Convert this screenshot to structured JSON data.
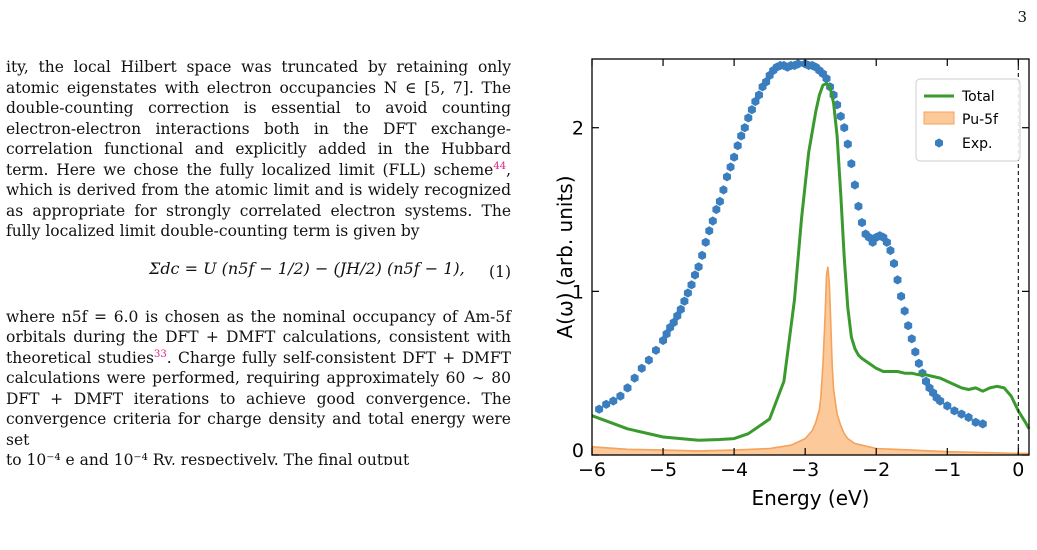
{
  "page": {
    "number": "3"
  },
  "text": {
    "para1": "ity, the local Hilbert space was truncated by retaining only atomic eigenstates with electron occupancies N ∈ [5, 7]. The double-counting correction is essential to avoid counting electron-electron interactions both in the DFT exchange-correlation functional and explicitly added in the Hubbard term. Here we chose the fully localized limit (FLL) scheme",
    "ref44": "44",
    "para1_cont": ", which is derived from the atomic limit and is widely recognized as appropriate for strongly correlated electron systems. The fully localized limit double-counting term is given by",
    "equation": "Σdc = U (n5f − 1/2) − (JH/2) (n5f − 1),",
    "equation_number": "(1)",
    "para2": "where n5f = 6.0 is chosen as the nominal occupancy of Am-5f orbitals during the DFT + DMFT calculations, consistent with theoretical studies",
    "ref33": "33",
    "para2_cont": ". Charge fully self-consistent DFT + DMFT calculations were performed, requiring approximately 60 ∼ 80 DFT + DMFT iterations to achieve good convergence. The convergence criteria for charge density and total energy were set",
    "last_line": "to 10⁻⁴ e and 10⁻⁴ Ry, respectively. The final output"
  },
  "chart_data": {
    "type": "line",
    "xlabel": "Energy (eV)",
    "ylabel": "A(ω) (arb. units)",
    "xlim": [
      -6,
      0.15
    ],
    "ylim": [
      0,
      2.42
    ],
    "xticks": [
      -6,
      -5,
      -4,
      -3,
      -2,
      -1,
      0
    ],
    "xtick_labels": [
      "−6",
      "−5",
      "−4",
      "−3",
      "−2",
      "−1",
      "0"
    ],
    "yticks": [
      0,
      1,
      2
    ],
    "ytick_labels": [
      "0",
      "1",
      "2"
    ],
    "fermi_level": 0,
    "legend_position": "top-right",
    "series": [
      {
        "name": "Total",
        "kind": "line",
        "color": "#3a9a2e",
        "x": [
          -6,
          -5.5,
          -5,
          -4.5,
          -4.2,
          -4.0,
          -3.8,
          -3.5,
          -3.3,
          -3.15,
          -3.05,
          -2.95,
          -2.85,
          -2.8,
          -2.75,
          -2.7,
          -2.65,
          -2.6,
          -2.55,
          -2.5,
          -2.45,
          -2.4,
          -2.35,
          -2.3,
          -2.25,
          -2.2,
          -2.1,
          -2.0,
          -1.9,
          -1.8,
          -1.7,
          -1.6,
          -1.5,
          -1.4,
          -1.3,
          -1.2,
          -1.1,
          -1.0,
          -0.9,
          -0.8,
          -0.7,
          -0.6,
          -0.5,
          -0.4,
          -0.3,
          -0.2,
          -0.1,
          0.0,
          0.1,
          0.15
        ],
        "y": [
          0.24,
          0.16,
          0.11,
          0.09,
          0.095,
          0.1,
          0.13,
          0.22,
          0.45,
          0.95,
          1.45,
          1.85,
          2.1,
          2.2,
          2.26,
          2.27,
          2.25,
          2.15,
          1.95,
          1.6,
          1.2,
          0.9,
          0.72,
          0.65,
          0.61,
          0.59,
          0.56,
          0.53,
          0.51,
          0.51,
          0.51,
          0.5,
          0.5,
          0.49,
          0.49,
          0.48,
          0.47,
          0.45,
          0.43,
          0.41,
          0.4,
          0.41,
          0.39,
          0.41,
          0.42,
          0.41,
          0.36,
          0.27,
          0.2,
          0.16
        ]
      },
      {
        "name": "Pu-5f",
        "kind": "area",
        "color": "#f5a25b",
        "fill": "#fbc99a",
        "x": [
          -6,
          -5.5,
          -5,
          -4.5,
          -4,
          -3.5,
          -3.2,
          -3.0,
          -2.9,
          -2.85,
          -2.8,
          -2.78,
          -2.75,
          -2.72,
          -2.7,
          -2.68,
          -2.66,
          -2.64,
          -2.62,
          -2.6,
          -2.55,
          -2.5,
          -2.45,
          -2.4,
          -2.3,
          -2.2,
          -2.0,
          -1.5,
          -1.0,
          -0.5,
          0.0,
          0.15
        ],
        "y": [
          0.05,
          0.035,
          0.03,
          0.025,
          0.03,
          0.04,
          0.06,
          0.1,
          0.15,
          0.2,
          0.28,
          0.35,
          0.55,
          0.85,
          1.1,
          1.15,
          1.05,
          0.8,
          0.55,
          0.4,
          0.25,
          0.18,
          0.13,
          0.1,
          0.07,
          0.06,
          0.04,
          0.03,
          0.02,
          0.015,
          0.01,
          0.01
        ]
      },
      {
        "name": "Exp.",
        "kind": "scatter",
        "color": "#3a7ebf",
        "x": [
          -5.9,
          -5.8,
          -5.7,
          -5.6,
          -5.5,
          -5.4,
          -5.3,
          -5.2,
          -5.1,
          -5.0,
          -4.95,
          -4.9,
          -4.85,
          -4.8,
          -4.75,
          -4.7,
          -4.65,
          -4.6,
          -4.55,
          -4.5,
          -4.45,
          -4.4,
          -4.35,
          -4.3,
          -4.25,
          -4.2,
          -4.15,
          -4.1,
          -4.05,
          -4.0,
          -3.95,
          -3.9,
          -3.85,
          -3.8,
          -3.75,
          -3.7,
          -3.65,
          -3.6,
          -3.55,
          -3.5,
          -3.45,
          -3.4,
          -3.35,
          -3.3,
          -3.25,
          -3.2,
          -3.15,
          -3.1,
          -3.0,
          -2.95,
          -2.9,
          -2.85,
          -2.8,
          -2.75,
          -2.7,
          -2.65,
          -2.6,
          -2.55,
          -2.5,
          -2.45,
          -2.4,
          -2.35,
          -2.3,
          -2.25,
          -2.2,
          -2.15,
          -2.1,
          -2.05,
          -2.0,
          -1.95,
          -1.9,
          -1.85,
          -1.8,
          -1.75,
          -1.7,
          -1.65,
          -1.6,
          -1.55,
          -1.5,
          -1.45,
          -1.4,
          -1.35,
          -1.3,
          -1.25,
          -1.2,
          -1.15,
          -1.1,
          -1.0,
          -0.9,
          -0.8,
          -0.7,
          -0.6,
          -0.5
        ],
        "y": [
          0.28,
          0.31,
          0.33,
          0.36,
          0.41,
          0.47,
          0.53,
          0.58,
          0.64,
          0.7,
          0.74,
          0.78,
          0.81,
          0.85,
          0.89,
          0.94,
          0.99,
          1.04,
          1.1,
          1.15,
          1.22,
          1.3,
          1.37,
          1.43,
          1.5,
          1.55,
          1.62,
          1.7,
          1.76,
          1.82,
          1.89,
          1.95,
          2.0,
          2.06,
          2.11,
          2.16,
          2.2,
          2.25,
          2.28,
          2.32,
          2.35,
          2.37,
          2.38,
          2.38,
          2.37,
          2.38,
          2.38,
          2.39,
          2.39,
          2.38,
          2.38,
          2.37,
          2.35,
          2.33,
          2.3,
          2.25,
          2.2,
          2.14,
          2.07,
          2.0,
          1.9,
          1.78,
          1.65,
          1.52,
          1.42,
          1.35,
          1.33,
          1.3,
          1.33,
          1.34,
          1.33,
          1.3,
          1.25,
          1.17,
          1.07,
          0.97,
          0.88,
          0.79,
          0.71,
          0.63,
          0.56,
          0.5,
          0.45,
          0.41,
          0.38,
          0.35,
          0.33,
          0.3,
          0.27,
          0.25,
          0.23,
          0.2,
          0.19
        ]
      }
    ]
  }
}
